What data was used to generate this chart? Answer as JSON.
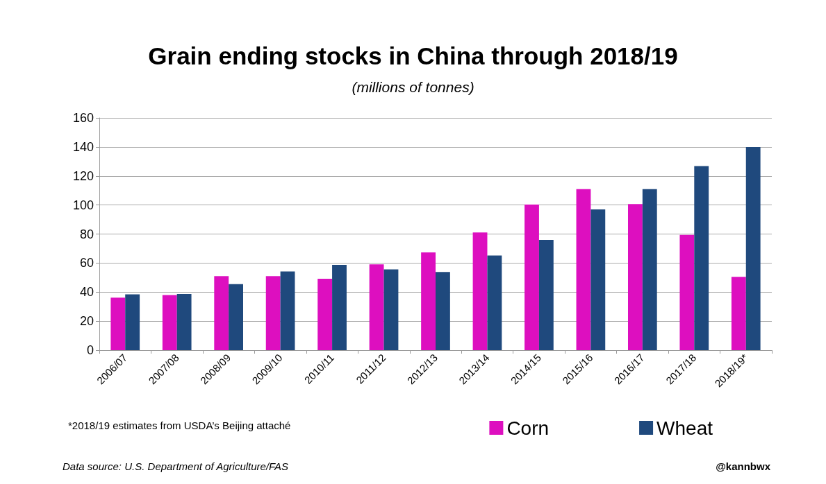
{
  "chart_data": {
    "type": "bar",
    "title": "Grain ending stocks in China through 2018/19",
    "subtitle": "(millions of tonnes)",
    "categories": [
      "2006/07",
      "2007/08",
      "2008/09",
      "2009/10",
      "2010/11",
      "2011/12",
      "2012/13",
      "2013/14",
      "2014/15",
      "2015/16",
      "2016/17",
      "2017/18",
      "2018/19*"
    ],
    "series": [
      {
        "name": "Corn",
        "color": "#dd0fbf",
        "values": [
          36.2,
          38.0,
          51.0,
          51.0,
          49.2,
          59.1,
          67.3,
          81.1,
          100.3,
          110.9,
          100.6,
          79.4,
          50.5
        ]
      },
      {
        "name": "Wheat",
        "color": "#1f497d",
        "values": [
          38.4,
          38.7,
          45.5,
          54.2,
          58.8,
          55.6,
          53.8,
          65.2,
          76.0,
          96.9,
          110.9,
          126.8,
          140
        ]
      }
    ],
    "ylim": [
      0,
      160
    ],
    "yticks": [
      0,
      20,
      40,
      60,
      80,
      100,
      120,
      140,
      160
    ],
    "grid": "y",
    "legend": "bottom right",
    "annotations": [
      "*2018/19 estimates from USDA’s Beijing attaché",
      "Data source: U.S. Department of Agriculture/FAS",
      "@kannbwx"
    ]
  }
}
